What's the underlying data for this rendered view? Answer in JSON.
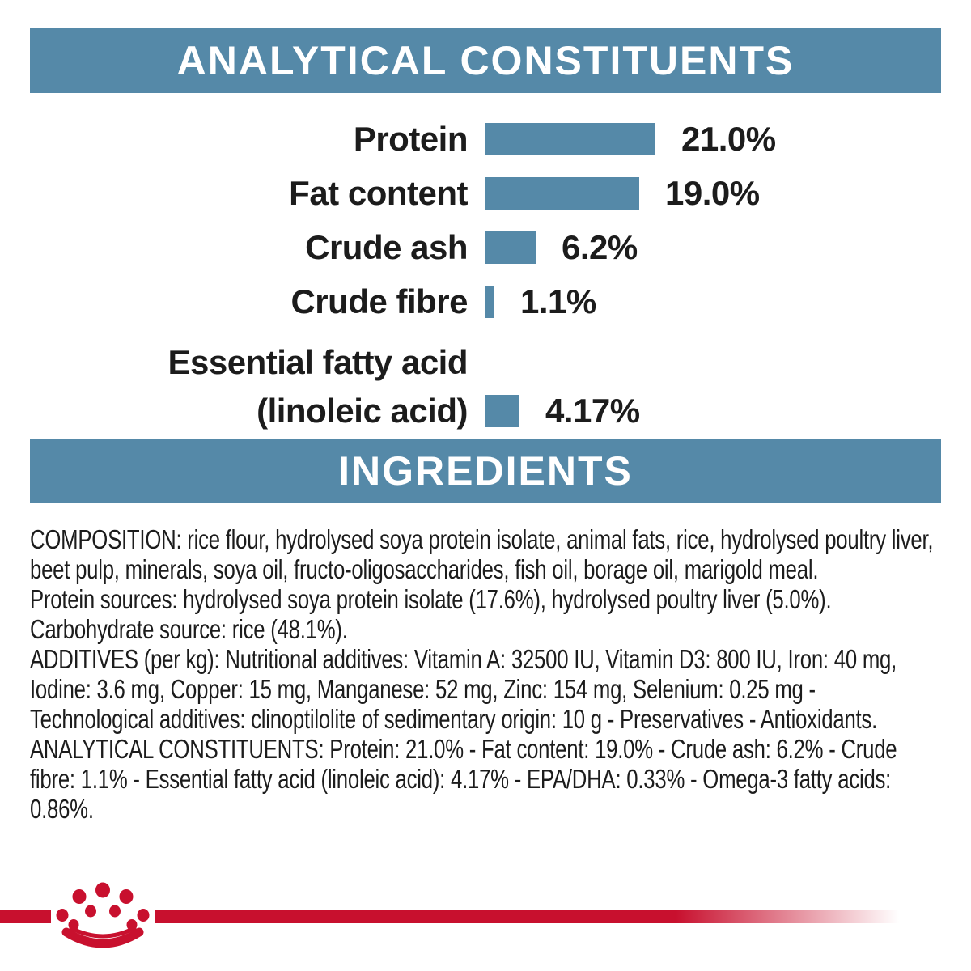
{
  "page": {
    "background": "#ffffff",
    "accent_blue": "#5589a8",
    "brand_red": "#c8102e",
    "text_color": "#1c1c1c"
  },
  "headers": {
    "analytical": "ANALYTICAL CONSTITUENTS",
    "ingredients": "INGREDIENTS"
  },
  "chart_data": {
    "type": "bar",
    "orientation": "horizontal",
    "title": "ANALYTICAL CONSTITUENTS",
    "categories": [
      "Protein",
      "Fat content",
      "Crude ash",
      "Crude fibre",
      "Essential fatty acid (linoleic acid)"
    ],
    "values": [
      21.0,
      19.0,
      6.2,
      1.1,
      4.17
    ],
    "value_labels": [
      "21.0%",
      "19.0%",
      "6.2%",
      "1.1%",
      "4.17%"
    ],
    "label_lines": [
      [
        "Protein"
      ],
      [
        "Fat content"
      ],
      [
        "Crude ash"
      ],
      [
        "Crude fibre"
      ],
      [
        "Essential fatty acid",
        "(linoleic acid)"
      ]
    ],
    "bar_color": "#5589a8",
    "xlim": [
      0,
      25
    ],
    "grid": false,
    "legend": false
  },
  "ingredients_text": {
    "composition": "COMPOSITION: rice flour, hydrolysed soya protein isolate, animal fats, rice, hydrolysed poultry liver, beet pulp, minerals, soya oil, fructo-oligosaccharides, fish oil, borage oil, marigold meal.",
    "protein_sources": "Protein sources: hydrolysed soya protein isolate (17.6%), hydrolysed poultry liver (5.0%).",
    "carbohydrate_source": "Carbohydrate source: rice (48.1%).",
    "additives": "ADDITIVES (per kg): Nutritional additives: Vitamin A: 32500 IU, Vitamin D3: 800 IU, Iron: 40 mg, Iodine: 3.6 mg, Copper: 15 mg, Manganese: 52 mg, Zinc: 154 mg, Selenium: 0.25 mg - Technological additives: clinoptilolite of sedimentary origin: 10 g - Preservatives - Antioxidants.",
    "analytical_constituents": "ANALYTICAL CONSTITUENTS: Protein: 21.0% - Fat content: 19.0% - Crude ash: 6.2% - Crude fibre: 1.1% - Essential fatty acid (linoleic acid): 4.17% - EPA/DHA: 0.33% - Omega-3 fatty acids: 0.86%."
  },
  "footer": {
    "logo": "royal-canin-crown"
  }
}
